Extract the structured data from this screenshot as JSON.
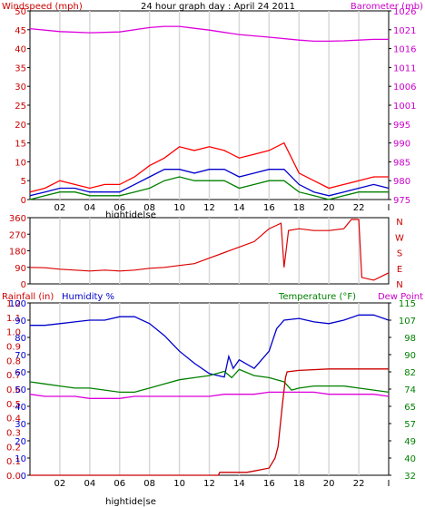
{
  "chart_data": [
    {
      "type": "line",
      "title": "24 hour graph day : April 24 2011",
      "left_label": "Windspeed (mph)",
      "right_label": "Barometer (mb)",
      "left_ticks": [
        "0",
        "5",
        "10",
        "15",
        "20",
        "25",
        "30",
        "35",
        "40",
        "45",
        "50"
      ],
      "right_ticks": [
        "975",
        "980",
        "985",
        "990",
        "995",
        "1001",
        "1006",
        "1011",
        "1016",
        "1021",
        "1026"
      ],
      "x_ticks": [
        "02",
        "04",
        "06",
        "08",
        "10",
        "12",
        "14",
        "16",
        "18",
        "20",
        "22",
        "I"
      ],
      "x_note": "hightide|se",
      "ylim_left": [
        0,
        50
      ],
      "ylim_right": [
        975,
        1026
      ],
      "colors": {
        "wind_gust": "#ff0000",
        "wind_avg": "#0000cc",
        "wind_low": "#008000",
        "barometer": "#dd00dd",
        "left_axis": "#cc0000",
        "right_axis": "#cc00cc"
      },
      "series": [
        {
          "key": "barometer",
          "x": [
            0,
            2,
            4,
            6,
            8,
            9,
            10,
            11,
            12,
            13,
            14,
            16,
            18,
            19,
            20,
            21,
            22,
            23,
            24
          ],
          "y": [
            1021.2,
            1020.4,
            1020.1,
            1020.3,
            1021.5,
            1021.8,
            1021.8,
            1021.3,
            1020.8,
            1020.2,
            1019.6,
            1018.9,
            1018.1,
            1017.8,
            1017.8,
            1017.9,
            1018.1,
            1018.3,
            1018.3
          ]
        },
        {
          "key": "wind_gust",
          "x": [
            0,
            1,
            2,
            3,
            4,
            5,
            6,
            7,
            8,
            9,
            10,
            11,
            12,
            13,
            14,
            15,
            16,
            17,
            18,
            19,
            20,
            21,
            22,
            23,
            24
          ],
          "y": [
            2,
            3,
            5,
            4,
            3,
            4,
            4,
            6,
            9,
            11,
            14,
            13,
            14,
            13,
            11,
            12,
            13,
            15,
            7,
            5,
            3,
            4,
            5,
            6,
            6
          ]
        },
        {
          "key": "wind_avg",
          "x": [
            0,
            1,
            2,
            3,
            4,
            5,
            6,
            7,
            8,
            9,
            10,
            11,
            12,
            13,
            14,
            15,
            16,
            17,
            18,
            19,
            20,
            21,
            22,
            23,
            24
          ],
          "y": [
            1,
            2,
            3,
            3,
            2,
            2,
            2,
            4,
            6,
            8,
            8,
            7,
            8,
            8,
            6,
            7,
            8,
            8,
            4,
            2,
            1,
            2,
            3,
            4,
            3
          ]
        },
        {
          "key": "wind_low",
          "x": [
            0,
            1,
            2,
            3,
            4,
            5,
            6,
            7,
            8,
            9,
            10,
            11,
            12,
            13,
            14,
            15,
            16,
            17,
            18,
            19,
            20,
            21,
            22,
            23,
            24
          ],
          "y": [
            0,
            1,
            2,
            2,
            1,
            1,
            1,
            2,
            3,
            5,
            6,
            5,
            5,
            5,
            3,
            4,
            5,
            5,
            2,
            1,
            0,
            1,
            2,
            2,
            2
          ]
        }
      ]
    },
    {
      "type": "line",
      "left_ticks": [
        "0",
        "90",
        "180",
        "270",
        "360"
      ],
      "right_ticks": [
        "N",
        "W",
        "S",
        "E",
        "N"
      ],
      "ylim": [
        0,
        360
      ],
      "colors": {
        "direction": "#dd0000"
      },
      "series": [
        {
          "key": "wind_direction",
          "x": [
            0,
            1,
            2,
            3,
            4,
            5,
            6,
            7,
            8,
            9,
            10,
            11,
            12,
            13,
            14,
            15,
            16,
            16.8,
            17,
            17.3,
            18,
            19,
            20,
            21,
            21.5,
            22,
            22.2,
            23,
            24
          ],
          "y": [
            90,
            88,
            80,
            75,
            70,
            75,
            70,
            75,
            85,
            90,
            100,
            110,
            140,
            170,
            200,
            230,
            300,
            330,
            90,
            290,
            300,
            290,
            290,
            300,
            350,
            350,
            35,
            20,
            60
          ]
        }
      ]
    },
    {
      "type": "line",
      "left_label_1": "Rainfall (in)",
      "left_label_2": "Humidity %",
      "right_label_1": "Temperature (°F)",
      "right_label_2": "Dew Point",
      "rain_ticks": [
        "0.0",
        "0.1",
        "0.2",
        "0.3",
        "0.4",
        "0.5",
        "0.6",
        "0.7",
        "0.8",
        "0.9",
        "1.0",
        "1.1",
        "1.2"
      ],
      "humidity_ticks": [
        "0",
        "10",
        "20",
        "30",
        "40",
        "50",
        "60",
        "70",
        "80",
        "90",
        "100"
      ],
      "temp_ticks": [
        "32",
        "40",
        "49",
        "57",
        "65",
        "74",
        "82",
        "90",
        "98",
        "107",
        "115"
      ],
      "x_ticks": [
        "02",
        "04",
        "06",
        "08",
        "10",
        "12",
        "14",
        "16",
        "18",
        "20",
        "22",
        "I"
      ],
      "x_note": "hightide|se",
      "ylim_humidity": [
        0,
        100
      ],
      "ylim_temp": [
        32,
        115
      ],
      "ylim_rain": [
        0,
        1.2
      ],
      "colors": {
        "humidity": "#0000cc",
        "temperature": "#008000",
        "dewpoint": "#dd00dd",
        "rainfall": "#cc0000"
      },
      "series": [
        {
          "key": "humidity",
          "x": [
            0,
            1,
            2,
            3,
            4,
            5,
            6,
            7,
            8,
            9,
            10,
            11,
            12,
            13,
            13.3,
            13.6,
            14,
            15,
            16,
            16.5,
            17,
            18,
            19,
            20,
            21,
            22,
            23,
            24
          ],
          "y": [
            87,
            87,
            88,
            89,
            90,
            90,
            92,
            92,
            88,
            81,
            72,
            65,
            59,
            57,
            69,
            62,
            67,
            62,
            72,
            85,
            90,
            91,
            89,
            88,
            90,
            93,
            93,
            90
          ]
        },
        {
          "key": "temperature",
          "x": [
            0,
            1,
            2,
            3,
            4,
            5,
            6,
            7,
            8,
            9,
            10,
            11,
            12,
            13,
            13.5,
            14,
            15,
            16,
            17,
            17.5,
            18,
            19,
            20,
            21,
            22,
            23,
            24
          ],
          "y": [
            77,
            76,
            75,
            74,
            74,
            73,
            72,
            72,
            74,
            76,
            78,
            79,
            80,
            82,
            79,
            83,
            80,
            79,
            77,
            73,
            74,
            75,
            75,
            75,
            74,
            73,
            72
          ]
        },
        {
          "key": "dewpoint",
          "x": [
            0,
            1,
            2,
            3,
            4,
            5,
            6,
            7,
            8,
            9,
            10,
            11,
            12,
            13,
            14,
            15,
            16,
            17,
            18,
            19,
            20,
            21,
            22,
            23,
            24
          ],
          "y": [
            71,
            70,
            70,
            70,
            69,
            69,
            69,
            70,
            70,
            70,
            70,
            70,
            70,
            71,
            71,
            71,
            72,
            72,
            72,
            72,
            71,
            71,
            71,
            71,
            70
          ]
        },
        {
          "key": "rainfall",
          "x": [
            0,
            12.6,
            12.7,
            14.5,
            15,
            16,
            16.4,
            16.6,
            16.9,
            17.1,
            17.2,
            18,
            20,
            22,
            23,
            24
          ],
          "y": [
            0.0,
            0.0,
            0.02,
            0.02,
            0.03,
            0.05,
            0.12,
            0.2,
            0.5,
            0.68,
            0.72,
            0.73,
            0.74,
            0.74,
            0.74,
            0.74
          ]
        }
      ]
    }
  ]
}
